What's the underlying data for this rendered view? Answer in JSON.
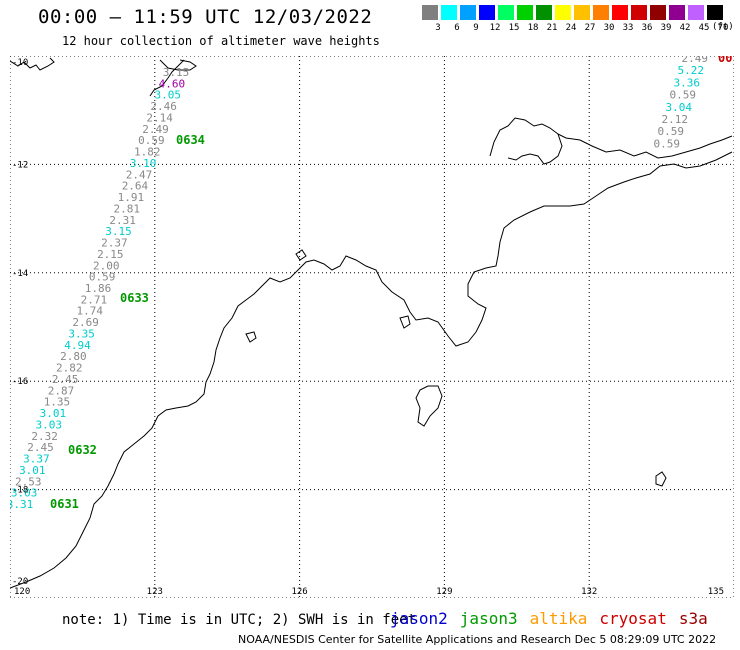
{
  "header": {
    "title": "00:00 – 11:59 UTC 12/03/2022",
    "subtitle": "12 hour collection of altimeter wave heights"
  },
  "scale": {
    "colors": [
      "#7f7f7f",
      "#00ffff",
      "#00a0ff",
      "#0000ff",
      "#00ff60",
      "#00d000",
      "#009000",
      "#ffff00",
      "#ffc000",
      "#ff8000",
      "#ff0000",
      "#d00000",
      "#900000",
      "#900090",
      "#c060ff",
      "#000000"
    ],
    "labels": [
      "3",
      "6",
      "9",
      "12",
      "15",
      "18",
      "21",
      "24",
      "27",
      "30",
      "33",
      "36",
      "39",
      "42",
      "45",
      "70"
    ],
    "unit": "(ft)"
  },
  "map": {
    "lat_labels": [
      "-10",
      "-12",
      "-14",
      "-16",
      "-18",
      "-20"
    ],
    "lon_labels": [
      "120",
      "123",
      "126",
      "129",
      "132",
      "135"
    ],
    "lat_values": [
      -10,
      -12,
      -14,
      -16,
      -18,
      -20
    ],
    "lon_values": [
      120,
      123,
      126,
      129,
      132,
      135
    ],
    "extent": {
      "lon_min": 120,
      "lon_max": 135,
      "lat_min": -20,
      "lat_max": -10
    }
  },
  "tracks": [
    {
      "satellite": "jason3",
      "color": "#888888",
      "points": [
        {
          "v": "3.15",
          "c": "#888888"
        },
        {
          "v": "4.60",
          "c": "#a000a0"
        },
        {
          "v": "3.05",
          "c": "#00cccc"
        },
        {
          "v": "2.46",
          "c": "#888888"
        },
        {
          "v": "2.14",
          "c": "#888888"
        },
        {
          "v": "2.49",
          "c": "#888888"
        },
        {
          "v": "0.59",
          "c": "#888888"
        },
        {
          "v": "1.82",
          "c": "#888888"
        },
        {
          "v": "3.10",
          "c": "#00cccc"
        },
        {
          "v": "2.47",
          "c": "#888888"
        },
        {
          "v": "2.64",
          "c": "#888888"
        },
        {
          "v": "1.91",
          "c": "#888888"
        },
        {
          "v": "2.81",
          "c": "#888888"
        },
        {
          "v": "2.31",
          "c": "#888888"
        },
        {
          "v": "3.15",
          "c": "#00cccc"
        },
        {
          "v": "2.37",
          "c": "#888888"
        },
        {
          "v": "2.15",
          "c": "#888888"
        },
        {
          "v": "2.00",
          "c": "#888888"
        },
        {
          "v": "0.59",
          "c": "#888888"
        },
        {
          "v": "1.86",
          "c": "#888888"
        },
        {
          "v": "2.71",
          "c": "#888888"
        },
        {
          "v": "1.74",
          "c": "#888888"
        },
        {
          "v": "2.69",
          "c": "#888888"
        },
        {
          "v": "3.35",
          "c": "#00cccc"
        },
        {
          "v": "4.94",
          "c": "#00cccc"
        },
        {
          "v": "2.80",
          "c": "#888888"
        },
        {
          "v": "2.82",
          "c": "#888888"
        },
        {
          "v": "2.45",
          "c": "#888888"
        },
        {
          "v": "2.87",
          "c": "#888888"
        },
        {
          "v": "1.35",
          "c": "#888888"
        },
        {
          "v": "3.01",
          "c": "#00cccc"
        },
        {
          "v": "3.03",
          "c": "#00cccc"
        },
        {
          "v": "2.32",
          "c": "#888888"
        },
        {
          "v": "2.45",
          "c": "#888888"
        },
        {
          "v": "3.37",
          "c": "#00cccc"
        },
        {
          "v": "3.01",
          "c": "#00cccc"
        },
        {
          "v": "2.53",
          "c": "#888888"
        },
        {
          "v": "3.03",
          "c": "#00cccc"
        },
        {
          "v": "3.31",
          "c": "#00cccc"
        }
      ],
      "times": [
        "0634",
        "0633",
        "0632",
        "0631"
      ]
    },
    {
      "satellite": "cryosat",
      "color": "#888888",
      "points": [
        {
          "v": "2.49",
          "c": "#888888"
        },
        {
          "v": "5.22",
          "c": "#00cccc"
        },
        {
          "v": "3.36",
          "c": "#00cccc"
        },
        {
          "v": "0.59",
          "c": "#888888"
        },
        {
          "v": "3.04",
          "c": "#00cccc"
        },
        {
          "v": "2.12",
          "c": "#888888"
        },
        {
          "v": "0.59",
          "c": "#888888"
        },
        {
          "v": "0.59",
          "c": "#888888"
        }
      ],
      "times": [
        "00"
      ]
    }
  ],
  "note": "note: 1) Time is in UTC; 2) SWH is in feet",
  "legend": [
    {
      "name": "jason2",
      "color": "#0000cc"
    },
    {
      "name": "jason3",
      "color": "#009900"
    },
    {
      "name": "altika",
      "color": "#ff9900"
    },
    {
      "name": "cryosat",
      "color": "#cc0000"
    },
    {
      "name": "s3a",
      "color": "#990000"
    }
  ],
  "footer": "NOAA/NESDIS Center for Satellite Applications and Research   Dec  5 08:29:09 UTC 2022"
}
